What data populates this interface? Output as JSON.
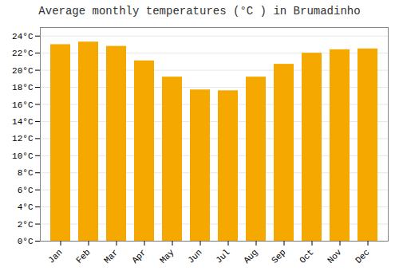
{
  "chart_data": {
    "type": "bar",
    "title": "Average monthly temperatures (°C ) in Brumadinho",
    "categories": [
      "Jan",
      "Feb",
      "Mar",
      "Apr",
      "May",
      "Jun",
      "Jul",
      "Aug",
      "Sep",
      "Oct",
      "Nov",
      "Dec"
    ],
    "values": [
      23.0,
      23.3,
      22.8,
      21.1,
      19.2,
      17.7,
      17.6,
      19.2,
      20.7,
      22.0,
      22.4,
      22.5
    ],
    "color": "#F5A800",
    "ylim": [
      0,
      25
    ],
    "yticks": [
      {
        "value": 0,
        "label": "0°C"
      },
      {
        "value": 2,
        "label": "2°C"
      },
      {
        "value": 4,
        "label": "4°C"
      },
      {
        "value": 6,
        "label": "6°C"
      },
      {
        "value": 8,
        "label": "8°C"
      },
      {
        "value": 10,
        "label": "10°C"
      },
      {
        "value": 12,
        "label": "12°C"
      },
      {
        "value": 14,
        "label": "14°C"
      },
      {
        "value": 16,
        "label": "16°C"
      },
      {
        "value": 18,
        "label": "18°C"
      },
      {
        "value": 20,
        "label": "20°C"
      },
      {
        "value": 22,
        "label": "22°C"
      },
      {
        "value": 24,
        "label": "24°C"
      }
    ],
    "grid": true
  }
}
